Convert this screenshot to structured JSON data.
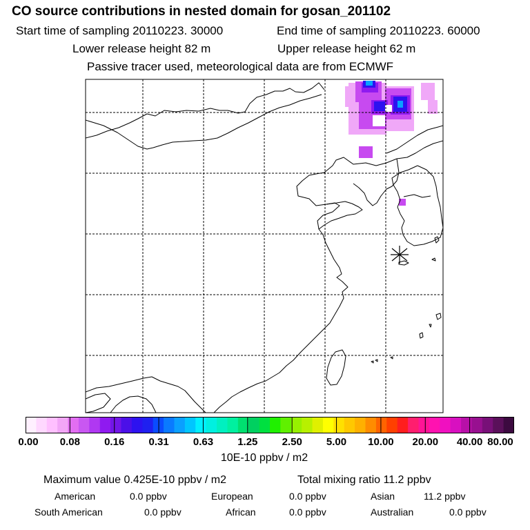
{
  "header": {
    "title": "CO  source contributions in nested domain for gosan_201102",
    "start_sampling": "Start time of sampling 20110223. 30000",
    "end_sampling": "End time of sampling 20110223. 60000",
    "lower_release": "Lower release height   82 m",
    "upper_release": "Upper release height   62 m",
    "tracer_note": "Passive tracer used, meteorological data are from ECMWF"
  },
  "colorbar": {
    "labels": [
      "0.00",
      "0.08",
      "0.16",
      "0.31",
      "0.63",
      "1.25",
      "2.50",
      "5.00",
      "10.00",
      "20.00",
      "40.00",
      "80.00"
    ],
    "colors": [
      "#fff0ff",
      "#ffd8ff",
      "#ffc0ff",
      "#f2a6f7",
      "#e26ef2",
      "#c957f2",
      "#b038f2",
      "#8f1af0",
      "#7216e8",
      "#4b10e8",
      "#2d12f0",
      "#1f20f0",
      "#0a4cff",
      "#0a7aff",
      "#0aa0ff",
      "#00c6ff",
      "#00f0ff",
      "#00f0e0",
      "#00f0c0",
      "#00f0a0",
      "#00e070",
      "#00d060",
      "#00e040",
      "#20f000",
      "#60f000",
      "#98f000",
      "#b8f000",
      "#e0f000",
      "#ffff00",
      "#ffe000",
      "#ffc800",
      "#ffb000",
      "#ff8c00",
      "#ff6400",
      "#ff4000",
      "#ff1e1e",
      "#ff1e6e",
      "#ff1496",
      "#ff12b0",
      "#f010c0",
      "#d810c0",
      "#b810a8",
      "#981090",
      "#781078",
      "#5a105a",
      "#3c0a40"
    ],
    "unit": "10E-10 ppbv / m2"
  },
  "footer": {
    "maximum_value": "Maximum value  0.425E-10 ppbv / m2",
    "total_mixing": "Total mixing ratio      11.2 ppbv",
    "american_label": "American",
    "american_value": "0.0 ppbv",
    "european_label": "European",
    "european_value": "0.0 ppbv",
    "asian_label": "Asian",
    "asian_value": "11.2 ppbv",
    "south_american_label": "South American",
    "south_american_value": "0.0 ppbv",
    "african_label": "African",
    "african_value": "0.0 ppbv",
    "australian_label": "Australian",
    "australian_value": "0.0 ppbv"
  },
  "map": {
    "receptor_marker": "asterisk",
    "gridline_style": "dashed",
    "plume_colors": {
      "light": "#f0a8f8",
      "mid": "#c74af0",
      "deep": "#8f1af0",
      "blue": "#2d12f0",
      "core": "#0aa0ff"
    }
  }
}
